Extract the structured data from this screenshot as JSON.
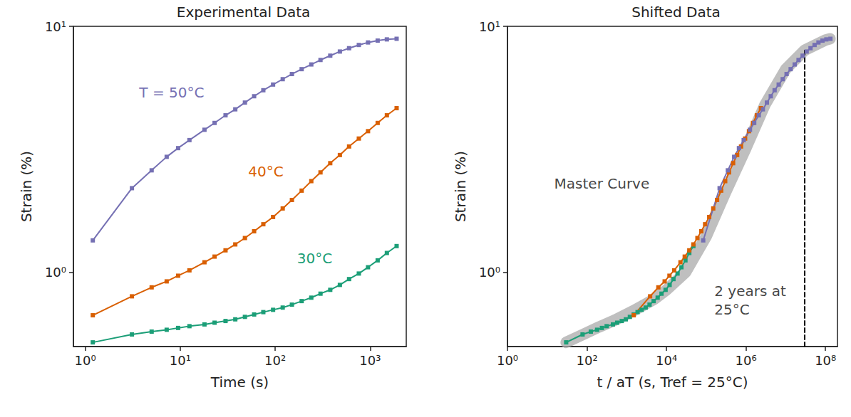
{
  "chart_data": [
    {
      "type": "line",
      "title": "Experimental Data",
      "x_label": "Time (s)",
      "y_label": "Strain (%)",
      "log": true,
      "grid": false,
      "xlim": [
        0.75,
        2400
      ],
      "ylim": [
        0.5,
        10
      ],
      "xticks": [
        {
          "value": 1,
          "label": "10⁰"
        },
        {
          "value": 10,
          "label": "10¹"
        },
        {
          "value": 100,
          "label": "10²"
        },
        {
          "value": 1000,
          "label": "10³"
        }
      ],
      "yticks": [
        {
          "value": 1,
          "label": "10⁰"
        },
        {
          "value": 10,
          "label": "10¹"
        }
      ],
      "series": [
        {
          "name": "T = 50°C",
          "color": "#7570b3",
          "marker": "square",
          "label_position": [
            3.7,
            5.4
          ],
          "x": [
            1.2,
            3.1,
            5,
            7.2,
            9.5,
            12.5,
            18,
            23,
            30,
            38,
            48,
            60,
            75,
            95,
            120,
            150,
            190,
            240,
            300,
            380,
            480,
            600,
            760,
            950,
            1200,
            1500,
            1900
          ],
          "values": [
            1.35,
            2.2,
            2.6,
            2.95,
            3.2,
            3.45,
            3.8,
            4.05,
            4.35,
            4.6,
            4.9,
            5.2,
            5.5,
            5.8,
            6.1,
            6.4,
            6.7,
            7.0,
            7.3,
            7.6,
            7.9,
            8.15,
            8.4,
            8.6,
            8.75,
            8.85,
            8.9
          ]
        },
        {
          "name": "40°C",
          "color": "#d95f02",
          "marker": "square",
          "label_position": [
            52,
            2.57
          ],
          "x": [
            1.2,
            3.1,
            5,
            7.2,
            9.5,
            12.5,
            18,
            23,
            30,
            38,
            48,
            60,
            75,
            95,
            120,
            150,
            190,
            240,
            300,
            380,
            480,
            600,
            760,
            950,
            1200,
            1500,
            1900
          ],
          "values": [
            0.67,
            0.8,
            0.87,
            0.92,
            0.97,
            1.02,
            1.1,
            1.16,
            1.23,
            1.3,
            1.38,
            1.47,
            1.57,
            1.68,
            1.82,
            1.97,
            2.15,
            2.35,
            2.55,
            2.78,
            3.0,
            3.25,
            3.5,
            3.75,
            4.05,
            4.35,
            4.65
          ]
        },
        {
          "name": "30°C",
          "color": "#1b9e77",
          "marker": "square",
          "label_position": [
            170,
            1.14
          ],
          "x": [
            1.2,
            3.1,
            5,
            7.2,
            9.5,
            12.5,
            18,
            23,
            30,
            38,
            48,
            60,
            75,
            95,
            120,
            150,
            190,
            240,
            300,
            380,
            480,
            600,
            760,
            950,
            1200,
            1500,
            1900
          ],
          "values": [
            0.52,
            0.56,
            0.575,
            0.585,
            0.595,
            0.605,
            0.615,
            0.625,
            0.635,
            0.645,
            0.66,
            0.675,
            0.69,
            0.705,
            0.72,
            0.74,
            0.765,
            0.79,
            0.82,
            0.85,
            0.89,
            0.94,
            0.99,
            1.05,
            1.12,
            1.2,
            1.28
          ]
        }
      ]
    },
    {
      "type": "line",
      "title": "Shifted Data",
      "x_label": "t / aT (s, Tref = 25°C)",
      "y_label": "Strain (%)",
      "log": true,
      "grid": false,
      "xlim": [
        1,
        200000000
      ],
      "ylim": [
        0.5,
        10
      ],
      "xticks": [
        {
          "value": 1,
          "label": "10⁰"
        },
        {
          "value": 100,
          "label": "10²"
        },
        {
          "value": 10000,
          "label": "10⁴"
        },
        {
          "value": 1000000,
          "label": "10⁶"
        },
        {
          "value": 100000000,
          "label": "10⁸"
        }
      ],
      "yticks": [
        {
          "value": 1,
          "label": "10⁰"
        },
        {
          "value": 10,
          "label": "10¹"
        }
      ],
      "annotations": [
        {
          "text": "Master Curve",
          "x": 15,
          "y": 2.3
        },
        {
          "text": "2 years at\n25°C",
          "x": 160000,
          "y": 0.77
        }
      ],
      "series": [
        {
          "type": "band",
          "color": "#aaaaaa",
          "x": [
            30,
            80,
            200,
            500,
            1500,
            5000,
            10000,
            30000,
            100000,
            300000,
            1000000,
            3000000,
            10000000,
            30000000,
            100000000,
            130000000
          ],
          "values": [
            0.52,
            0.56,
            0.6,
            0.64,
            0.7,
            0.78,
            0.85,
            1.0,
            1.4,
            2.1,
            3.2,
            4.8,
            6.7,
            8.0,
            8.8,
            8.9
          ]
        },
        {
          "color": "#1b9e77",
          "marker": "square",
          "x": [
            30,
            77.5,
            125,
            180,
            237.5,
            312.5,
            450,
            575,
            750,
            950,
            1200,
            1500,
            1875,
            2375,
            3000,
            3750,
            4750,
            6000,
            7500,
            9500,
            12000,
            15000,
            19000,
            23750,
            30000,
            37500,
            47500
          ],
          "values": [
            0.52,
            0.56,
            0.575,
            0.585,
            0.595,
            0.605,
            0.615,
            0.625,
            0.635,
            0.645,
            0.66,
            0.675,
            0.69,
            0.705,
            0.72,
            0.74,
            0.765,
            0.79,
            0.82,
            0.85,
            0.89,
            0.94,
            0.99,
            1.05,
            1.12,
            1.2,
            1.28
          ]
        },
        {
          "color": "#d95f02",
          "marker": "square",
          "x": [
            1500,
            3875,
            6250,
            9000,
            11875,
            15625,
            22500,
            28750,
            37500,
            47500,
            60000,
            75000,
            93750,
            118750,
            150000,
            187500,
            237500,
            300000,
            375000,
            475000,
            600000,
            750000,
            950000,
            1187500,
            1500000,
            1875000,
            2375000
          ],
          "values": [
            0.67,
            0.8,
            0.87,
            0.92,
            0.97,
            1.02,
            1.1,
            1.16,
            1.23,
            1.3,
            1.38,
            1.47,
            1.57,
            1.68,
            1.82,
            1.97,
            2.15,
            2.35,
            2.55,
            2.78,
            3.0,
            3.25,
            3.5,
            3.75,
            4.05,
            4.35,
            4.65
          ]
        },
        {
          "color": "#7570b3",
          "marker": "square",
          "x": [
            84000,
            217000,
            350000,
            504000,
            665000,
            875000,
            1260000,
            1610000,
            2100000,
            2660000,
            3360000,
            4200000,
            5250000,
            6650000,
            8400000,
            10500000,
            13300000,
            16800000,
            21000000,
            26600000,
            33600000,
            42000000,
            53200000,
            66500000,
            84000000,
            105000000,
            133000000
          ],
          "values": [
            1.35,
            2.2,
            2.6,
            2.95,
            3.2,
            3.45,
            3.8,
            4.05,
            4.35,
            4.6,
            4.9,
            5.2,
            5.5,
            5.8,
            6.1,
            6.4,
            6.7,
            7.0,
            7.3,
            7.6,
            7.9,
            8.15,
            8.4,
            8.6,
            8.75,
            8.85,
            8.9
          ]
        },
        {
          "color": "#000000",
          "line_style": "dashed",
          "x": [
            30000000,
            30000000
          ],
          "values": [
            0.5,
            8.1
          ]
        }
      ]
    }
  ]
}
